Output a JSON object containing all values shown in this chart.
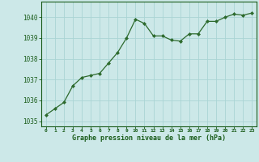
{
  "x": [
    0,
    1,
    2,
    3,
    4,
    5,
    6,
    7,
    8,
    9,
    10,
    11,
    12,
    13,
    14,
    15,
    16,
    17,
    18,
    19,
    20,
    21,
    22,
    23
  ],
  "y": [
    1035.3,
    1035.6,
    1035.9,
    1036.7,
    1037.1,
    1037.2,
    1037.3,
    1037.8,
    1038.3,
    1039.0,
    1039.9,
    1039.7,
    1039.1,
    1039.1,
    1038.9,
    1038.85,
    1039.2,
    1039.2,
    1039.8,
    1039.8,
    1040.0,
    1040.15,
    1040.1,
    1040.2
  ],
  "line_color": "#2d6a2d",
  "marker_color": "#2d6a2d",
  "bg_color": "#cce8e8",
  "grid_color": "#aad4d4",
  "axis_color": "#1a5c1a",
  "title": "Graphe pression niveau de la mer (hPa)",
  "ylim": [
    1034.75,
    1040.75
  ],
  "xlim": [
    -0.5,
    23.5
  ],
  "yticks": [
    1035,
    1036,
    1037,
    1038,
    1039,
    1040
  ],
  "xticks": [
    0,
    1,
    2,
    3,
    4,
    5,
    6,
    7,
    8,
    9,
    10,
    11,
    12,
    13,
    14,
    15,
    16,
    17,
    18,
    19,
    20,
    21,
    22,
    23
  ]
}
